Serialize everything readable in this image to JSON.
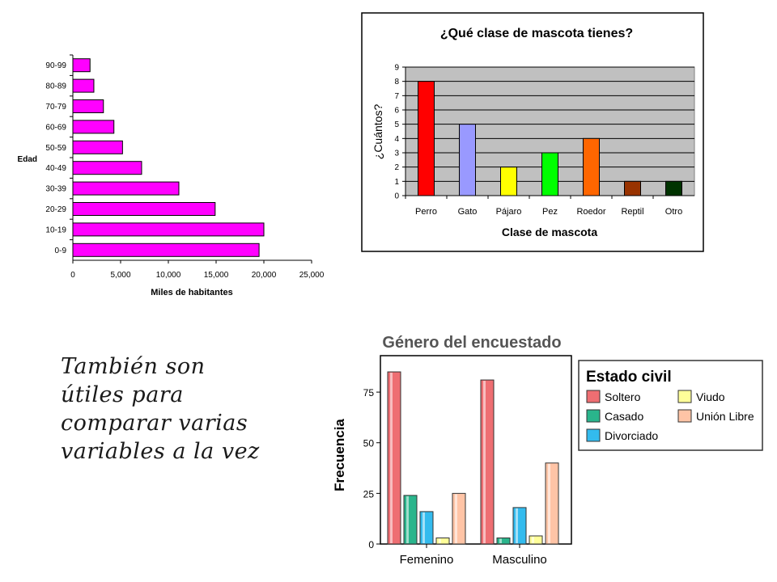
{
  "caption": {
    "lines": [
      "También son",
      "útiles para",
      "comparar varias",
      "variables a la vez"
    ]
  },
  "chart_data": [
    {
      "type": "bar",
      "orientation": "horizontal",
      "title": "",
      "xlabel": "Miles de habitantes",
      "ylabel": "Edad",
      "categories": [
        "0-9",
        "10-19",
        "20-29",
        "30-39",
        "40-49",
        "50-59",
        "60-69",
        "70-79",
        "80-89",
        "90-99"
      ],
      "values": [
        19500,
        20000,
        14900,
        11100,
        7200,
        5200,
        4300,
        3200,
        2200,
        1800
      ],
      "xlim": [
        0,
        25000
      ],
      "xticks": [
        "0",
        "5,000",
        "10,000",
        "15,000",
        "20,000",
        "25,000"
      ],
      "colors": {
        "bar": "#ff00ff",
        "stroke": "#000000"
      },
      "legend": "none"
    },
    {
      "type": "bar",
      "title": "¿Qué clase de mascota tienes?",
      "xlabel": "Clase de mascota",
      "ylabel": "¿Cuántos?",
      "categories": [
        "Perro",
        "Gato",
        "Pájaro",
        "Pez",
        "Roedor",
        "Reptil",
        "Otro"
      ],
      "values": [
        8,
        5,
        2,
        3,
        4,
        1,
        1
      ],
      "ylim": [
        0,
        9
      ],
      "yticks": [
        "0",
        "1",
        "2",
        "3",
        "4",
        "5",
        "6",
        "7",
        "8",
        "9"
      ],
      "grid": true,
      "colors": {
        "bars": [
          "#ff0000",
          "#9999ff",
          "#ffff00",
          "#00ff00",
          "#ff6600",
          "#993300",
          "#003300"
        ],
        "plot_background": "#c0c0c0",
        "chart_background": "#ffffff"
      },
      "legend": "none"
    },
    {
      "type": "bar",
      "title": "Género del encuestado",
      "xlabel": "",
      "ylabel": "Frecuencia",
      "categories": [
        "Femenino",
        "Masculino"
      ],
      "series": [
        {
          "name": "Soltero",
          "values": [
            85,
            81
          ],
          "color": "#ee6e72"
        },
        {
          "name": "Casado",
          "values": [
            24,
            3
          ],
          "color": "#2ab58c"
        },
        {
          "name": "Divorciado",
          "values": [
            16,
            18
          ],
          "color": "#33bbee"
        },
        {
          "name": "Viudo",
          "values": [
            3,
            4
          ],
          "color": "#ffff99"
        },
        {
          "name": "Unión Libre",
          "values": [
            25,
            40
          ],
          "color": "#ffc4a6"
        }
      ],
      "ylim": [
        0,
        93
      ],
      "yticks": [
        "0",
        "25",
        "50",
        "75"
      ],
      "legend_title": "Estado civil",
      "legend": "right"
    }
  ]
}
